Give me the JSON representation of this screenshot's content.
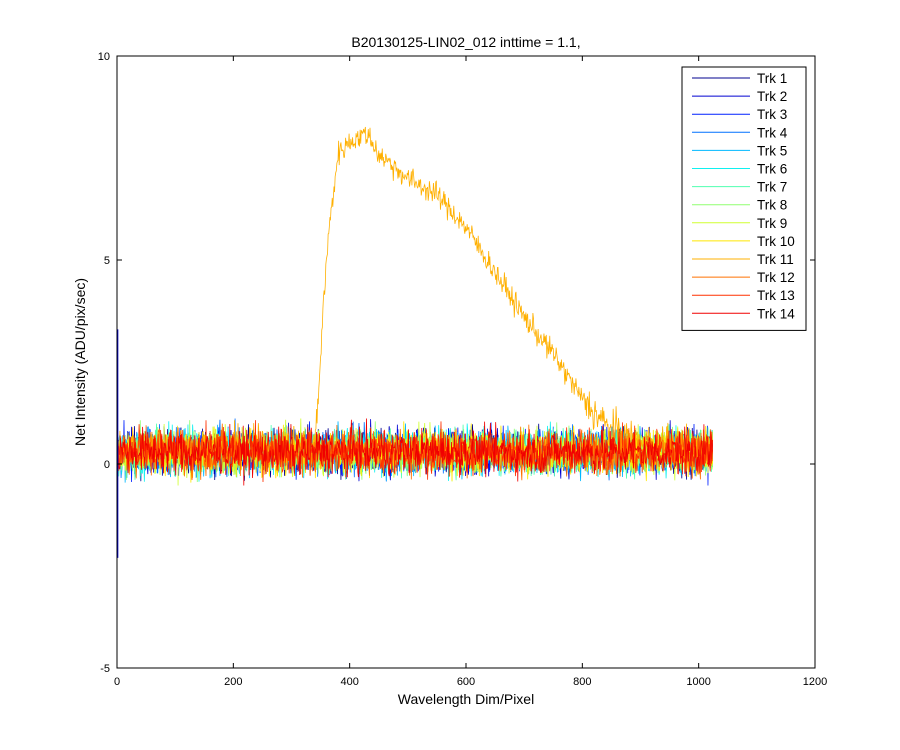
{
  "chart_data": {
    "type": "line",
    "title": "B20130125-LIN02_012 inttime = 1.1,",
    "xlabel": "Wavelength Dim/Pixel",
    "ylabel": "Net Intensity (ADU/pix/sec)",
    "xlim": [
      0,
      1200
    ],
    "ylim": [
      -5,
      10
    ],
    "xticks": [
      0,
      200,
      400,
      600,
      800,
      1000,
      1200
    ],
    "yticks": [
      -5,
      0,
      5,
      10
    ],
    "xtick_labels": [
      "0",
      "200",
      "400",
      "600",
      "800",
      "1000",
      "1200"
    ],
    "ytick_labels": [
      "-5",
      "0",
      "5",
      "10"
    ],
    "grid": false,
    "legend_position": "top-right",
    "x_range_data": [
      1,
      1024
    ],
    "noise_tracks": {
      "names": [
        "Trk 1",
        "Trk 2",
        "Trk 3",
        "Trk 4",
        "Trk 5",
        "Trk 6",
        "Trk 7",
        "Trk 8",
        "Trk 9",
        "Trk 10",
        "Trk 12",
        "Trk 13",
        "Trk 14"
      ],
      "mean": 0.3,
      "typical_min": -0.8,
      "typical_max": 1.3
    },
    "signal_track": {
      "name": "Trk 11",
      "envelope_x": [
        1,
        300,
        340,
        345,
        355,
        365,
        380,
        400,
        430,
        450,
        500,
        550,
        600,
        650,
        700,
        750,
        800,
        850,
        900,
        1024
      ],
      "envelope_y": [
        0.4,
        0.4,
        0.5,
        1.3,
        4.0,
        5.8,
        7.6,
        7.9,
        8.1,
        7.6,
        7.0,
        6.6,
        5.8,
        4.7,
        3.6,
        2.7,
        1.6,
        0.8,
        0.5,
        0.4
      ]
    },
    "series": [
      {
        "name": "Trk 1",
        "color": "#00008F"
      },
      {
        "name": "Trk 2",
        "color": "#0000D0"
      },
      {
        "name": "Trk 3",
        "color": "#0020FF"
      },
      {
        "name": "Trk 4",
        "color": "#0070FF"
      },
      {
        "name": "Trk 5",
        "color": "#00B8FF"
      },
      {
        "name": "Trk 6",
        "color": "#10F0F0"
      },
      {
        "name": "Trk 7",
        "color": "#50FFB0"
      },
      {
        "name": "Trk 8",
        "color": "#90FF70"
      },
      {
        "name": "Trk 9",
        "color": "#D0FF30"
      },
      {
        "name": "Trk 10",
        "color": "#FFE800"
      },
      {
        "name": "Trk 11",
        "color": "#FFB000"
      },
      {
        "name": "Trk 12",
        "color": "#FF7000"
      },
      {
        "name": "Trk 13",
        "color": "#FF3000"
      },
      {
        "name": "Trk 14",
        "color": "#F00000"
      }
    ]
  }
}
